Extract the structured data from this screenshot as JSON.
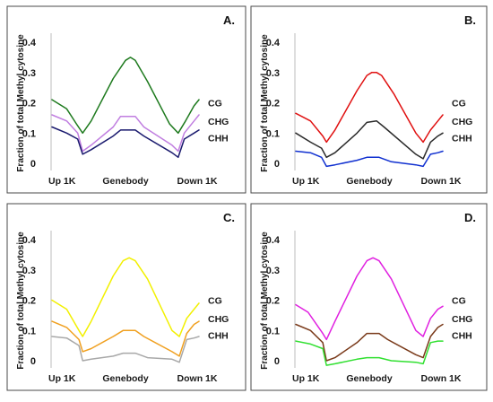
{
  "figure": {
    "y_axis_title": "Fraction of total Methyl cytosine"
  },
  "chart_data": [
    {
      "type": "line",
      "panel_label": "A.",
      "categories": [
        "Up 1K",
        "Genebody",
        "Down 1K"
      ],
      "ylabel": "Fraction of total Methyl cytosine",
      "ylim": [
        0,
        0.4
      ],
      "yticks": [
        "0.4",
        "0.3",
        "0.2",
        "0.1",
        "0"
      ],
      "grid": false,
      "series": [
        {
          "name": "CG",
          "color": "#1e7a1e",
          "points": [
            [
              0,
              0.21
            ],
            [
              12,
              0.18
            ],
            [
              20,
              0.13
            ],
            [
              25,
              0.1
            ],
            [
              32,
              0.14
            ],
            [
              50,
              0.28
            ],
            [
              60,
              0.34
            ],
            [
              64,
              0.35
            ],
            [
              68,
              0.34
            ],
            [
              78,
              0.27
            ],
            [
              96,
              0.13
            ],
            [
              103,
              0.1
            ],
            [
              109,
              0.14
            ],
            [
              116,
              0.19
            ],
            [
              120,
              0.21
            ]
          ]
        },
        {
          "name": "CHG",
          "color": "#c07ee0",
          "points": [
            [
              0,
              0.16
            ],
            [
              12,
              0.14
            ],
            [
              21,
              0.1
            ],
            [
              25,
              0.04
            ],
            [
              32,
              0.06
            ],
            [
              50,
              0.12
            ],
            [
              56,
              0.155
            ],
            [
              68,
              0.155
            ],
            [
              75,
              0.12
            ],
            [
              98,
              0.06
            ],
            [
              103,
              0.04
            ],
            [
              108,
              0.1
            ],
            [
              116,
              0.14
            ],
            [
              120,
              0.16
            ]
          ]
        },
        {
          "name": "CHH",
          "color": "#1a1a6e",
          "points": [
            [
              0,
              0.12
            ],
            [
              12,
              0.1
            ],
            [
              21,
              0.08
            ],
            [
              25,
              0.03
            ],
            [
              32,
              0.045
            ],
            [
              50,
              0.09
            ],
            [
              56,
              0.11
            ],
            [
              68,
              0.11
            ],
            [
              75,
              0.09
            ],
            [
              98,
              0.035
            ],
            [
              103,
              0.02
            ],
            [
              108,
              0.08
            ],
            [
              116,
              0.1
            ],
            [
              120,
              0.11
            ]
          ]
        }
      ]
    },
    {
      "type": "line",
      "panel_label": "B.",
      "categories": [
        "Up 1K",
        "Genebody",
        "Down 1K"
      ],
      "ylabel": "Fraction of total Methyl cytosine",
      "ylim": [
        0,
        0.4
      ],
      "yticks": [
        "0.4",
        "0.3",
        "0.2",
        "0.1",
        "0"
      ],
      "grid": false,
      "series": [
        {
          "name": "CG",
          "color": "#e01010",
          "points": [
            [
              0,
              0.165
            ],
            [
              12,
              0.14
            ],
            [
              22,
              0.09
            ],
            [
              25,
              0.07
            ],
            [
              32,
              0.11
            ],
            [
              50,
              0.24
            ],
            [
              58,
              0.29
            ],
            [
              62,
              0.3
            ],
            [
              66,
              0.3
            ],
            [
              70,
              0.29
            ],
            [
              80,
              0.23
            ],
            [
              98,
              0.1
            ],
            [
              104,
              0.07
            ],
            [
              110,
              0.11
            ],
            [
              116,
              0.14
            ],
            [
              120,
              0.16
            ]
          ]
        },
        {
          "name": "CHG",
          "color": "#2a2a2a",
          "points": [
            [
              0,
              0.1
            ],
            [
              12,
              0.07
            ],
            [
              21,
              0.05
            ],
            [
              25,
              0.02
            ],
            [
              32,
              0.035
            ],
            [
              50,
              0.1
            ],
            [
              58,
              0.135
            ],
            [
              66,
              0.14
            ],
            [
              72,
              0.12
            ],
            [
              98,
              0.03
            ],
            [
              104,
              0.015
            ],
            [
              110,
              0.07
            ],
            [
              116,
              0.09
            ],
            [
              120,
              0.1
            ]
          ]
        },
        {
          "name": "CHH",
          "color": "#1030d0",
          "points": [
            [
              0,
              0.04
            ],
            [
              12,
              0.035
            ],
            [
              21,
              0.02
            ],
            [
              25,
              -0.01
            ],
            [
              32,
              -0.005
            ],
            [
              50,
              0.01
            ],
            [
              58,
              0.02
            ],
            [
              68,
              0.02
            ],
            [
              78,
              0.005
            ],
            [
              98,
              -0.005
            ],
            [
              104,
              -0.01
            ],
            [
              110,
              0.03
            ],
            [
              116,
              0.035
            ],
            [
              120,
              0.04
            ]
          ]
        }
      ]
    },
    {
      "type": "line",
      "panel_label": "C.",
      "categories": [
        "Up 1K",
        "Genebody",
        "Down 1K"
      ],
      "ylabel": "Fraction of total Methyl cytosine",
      "ylim": [
        0,
        0.4
      ],
      "yticks": [
        "0.4",
        "0.3",
        "0.2",
        "0.1",
        "0"
      ],
      "grid": false,
      "series": [
        {
          "name": "CG",
          "color": "#f2f000",
          "points": [
            [
              0,
              0.2
            ],
            [
              12,
              0.17
            ],
            [
              22,
              0.1
            ],
            [
              25,
              0.08
            ],
            [
              32,
              0.13
            ],
            [
              50,
              0.28
            ],
            [
              58,
              0.33
            ],
            [
              63,
              0.34
            ],
            [
              68,
              0.33
            ],
            [
              78,
              0.27
            ],
            [
              98,
              0.1
            ],
            [
              104,
              0.08
            ],
            [
              110,
              0.14
            ],
            [
              116,
              0.17
            ],
            [
              120,
              0.19
            ]
          ]
        },
        {
          "name": "CHG",
          "color": "#f0a020",
          "points": [
            [
              0,
              0.13
            ],
            [
              12,
              0.11
            ],
            [
              22,
              0.07
            ],
            [
              25,
              0.03
            ],
            [
              32,
              0.04
            ],
            [
              50,
              0.08
            ],
            [
              58,
              0.1
            ],
            [
              68,
              0.1
            ],
            [
              75,
              0.08
            ],
            [
              98,
              0.03
            ],
            [
              104,
              0.015
            ],
            [
              110,
              0.09
            ],
            [
              116,
              0.12
            ],
            [
              120,
              0.13
            ]
          ]
        },
        {
          "name": "CHH",
          "color": "#a8a8a8",
          "points": [
            [
              0,
              0.08
            ],
            [
              12,
              0.075
            ],
            [
              22,
              0.05
            ],
            [
              25,
              0.0
            ],
            [
              32,
              0.005
            ],
            [
              50,
              0.015
            ],
            [
              58,
              0.025
            ],
            [
              68,
              0.025
            ],
            [
              78,
              0.01
            ],
            [
              98,
              0.005
            ],
            [
              104,
              -0.005
            ],
            [
              110,
              0.07
            ],
            [
              116,
              0.075
            ],
            [
              120,
              0.08
            ]
          ]
        }
      ]
    },
    {
      "type": "line",
      "panel_label": "D.",
      "categories": [
        "Up 1K",
        "Genebody",
        "Down 1K"
      ],
      "ylabel": "Fraction of total Methyl cytosine",
      "ylim": [
        0,
        0.4
      ],
      "yticks": [
        "0.4",
        "0.3",
        "0.2",
        "0.1",
        "0"
      ],
      "grid": false,
      "series": [
        {
          "name": "CG",
          "color": "#e020e0",
          "points": [
            [
              0,
              0.185
            ],
            [
              10,
              0.16
            ],
            [
              22,
              0.09
            ],
            [
              25,
              0.07
            ],
            [
              32,
              0.13
            ],
            [
              50,
              0.28
            ],
            [
              58,
              0.33
            ],
            [
              63,
              0.34
            ],
            [
              68,
              0.33
            ],
            [
              78,
              0.27
            ],
            [
              98,
              0.1
            ],
            [
              104,
              0.08
            ],
            [
              110,
              0.14
            ],
            [
              116,
              0.17
            ],
            [
              120,
              0.18
            ]
          ]
        },
        {
          "name": "CHG",
          "color": "#7a3a1a",
          "points": [
            [
              0,
              0.12
            ],
            [
              12,
              0.1
            ],
            [
              22,
              0.06
            ],
            [
              25,
              0.0
            ],
            [
              32,
              0.01
            ],
            [
              50,
              0.06
            ],
            [
              58,
              0.09
            ],
            [
              68,
              0.09
            ],
            [
              75,
              0.07
            ],
            [
              98,
              0.02
            ],
            [
              104,
              0.01
            ],
            [
              110,
              0.08
            ],
            [
              116,
              0.11
            ],
            [
              120,
              0.12
            ]
          ]
        },
        {
          "name": "CHH",
          "color": "#30e030",
          "points": [
            [
              0,
              0.065
            ],
            [
              12,
              0.055
            ],
            [
              22,
              0.04
            ],
            [
              25,
              -0.015
            ],
            [
              32,
              -0.01
            ],
            [
              50,
              0.005
            ],
            [
              58,
              0.01
            ],
            [
              68,
              0.01
            ],
            [
              78,
              0.0
            ],
            [
              98,
              -0.005
            ],
            [
              104,
              -0.01
            ],
            [
              110,
              0.06
            ],
            [
              116,
              0.065
            ],
            [
              120,
              0.065
            ]
          ]
        }
      ]
    }
  ]
}
